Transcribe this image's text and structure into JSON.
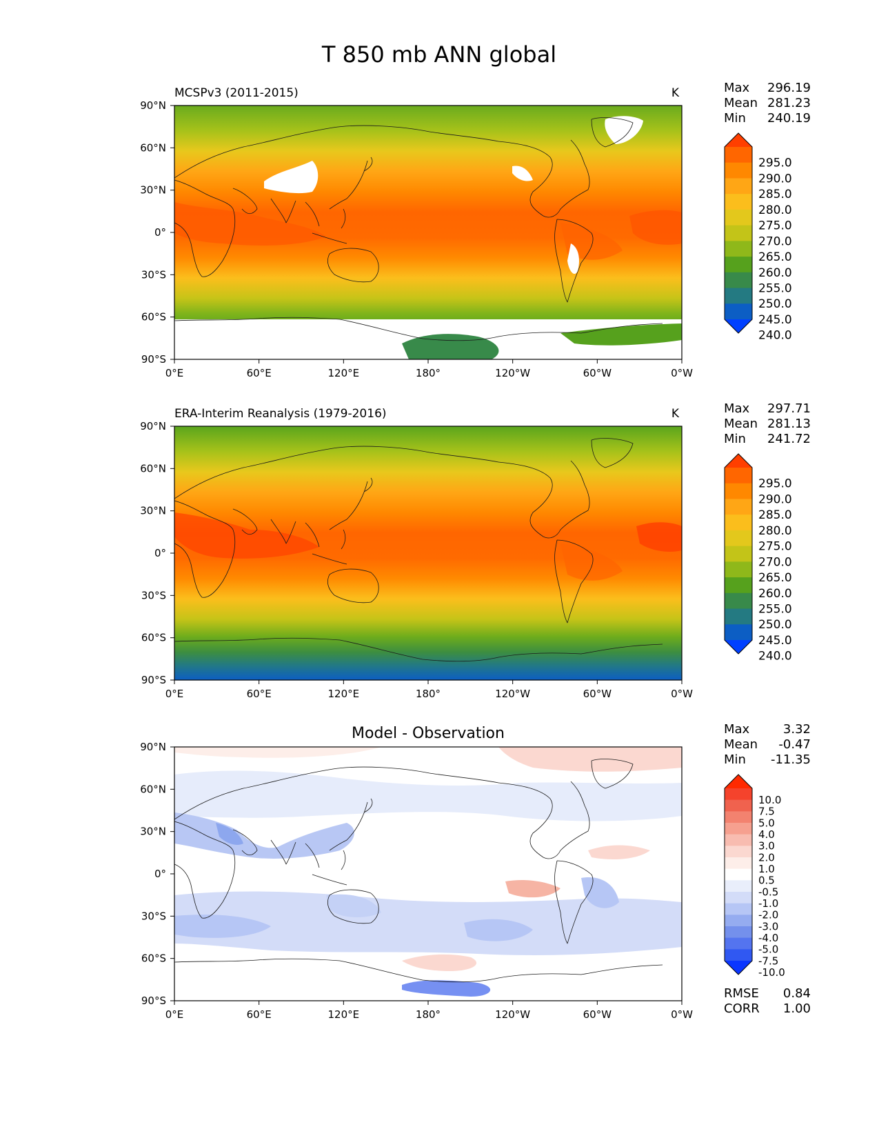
{
  "figure": {
    "title": "T 850 mb ANN global"
  },
  "axes": {
    "x_ticks": [
      "0°E",
      "60°E",
      "120°E",
      "180°",
      "120°W",
      "60°W",
      "0°W"
    ],
    "y_ticks": [
      "90°N",
      "60°N",
      "30°N",
      "0°",
      "30°S",
      "60°S",
      "90°S"
    ]
  },
  "chart_data": [
    {
      "type": "heatmap",
      "name": "model",
      "title": "MCSPv3 (2011-2015)",
      "units": "K",
      "xlim": [
        0,
        360
      ],
      "ylim": [
        -90,
        90
      ],
      "stats": [
        {
          "label": "Max",
          "value": "296.19"
        },
        {
          "label": "Mean",
          "value": "281.23"
        },
        {
          "label": "Min",
          "value": "240.19"
        }
      ],
      "colorbar": {
        "levels": [
          "295.0",
          "290.0",
          "285.0",
          "280.0",
          "275.0",
          "270.0",
          "265.0",
          "260.0",
          "255.0",
          "250.0",
          "245.0",
          "240.0"
        ],
        "colors": [
          "#ff3f00",
          "#ff6600",
          "#ff8800",
          "#ffa615",
          "#fbbe1c",
          "#e3c81c",
          "#c3c418",
          "#8fb81a",
          "#56a11d",
          "#388a4a",
          "#247a82",
          "#0c5ec4",
          "#0040ff"
        ]
      }
    },
    {
      "type": "heatmap",
      "name": "reference",
      "title": "ERA-Interim Reanalysis (1979-2016)",
      "units": "K",
      "xlim": [
        0,
        360
      ],
      "ylim": [
        -90,
        90
      ],
      "stats": [
        {
          "label": "Max",
          "value": "297.71"
        },
        {
          "label": "Mean",
          "value": "281.13"
        },
        {
          "label": "Min",
          "value": "241.72"
        }
      ],
      "colorbar": {
        "levels": [
          "295.0",
          "290.0",
          "285.0",
          "280.0",
          "275.0",
          "270.0",
          "265.0",
          "260.0",
          "255.0",
          "250.0",
          "245.0",
          "240.0"
        ],
        "colors": [
          "#ff3f00",
          "#ff6600",
          "#ff8800",
          "#ffa615",
          "#fbbe1c",
          "#e3c81c",
          "#c3c418",
          "#8fb81a",
          "#56a11d",
          "#388a4a",
          "#247a82",
          "#0c5ec4",
          "#0040ff"
        ]
      }
    },
    {
      "type": "heatmap",
      "name": "difference",
      "title": "Model - Observation",
      "units": "",
      "xlim": [
        0,
        360
      ],
      "ylim": [
        -90,
        90
      ],
      "stats": [
        {
          "label": "Max",
          "value": "3.32"
        },
        {
          "label": "Mean",
          "value": "-0.47"
        },
        {
          "label": "Min",
          "value": "-11.35"
        }
      ],
      "metrics": [
        {
          "label": "RMSE",
          "value": "0.84"
        },
        {
          "label": "CORR",
          "value": "1.00"
        }
      ],
      "colorbar": {
        "levels": [
          "10.0",
          "7.5",
          "5.0",
          "4.0",
          "3.0",
          "2.0",
          "1.0",
          "0.5",
          "-0.5",
          "-1.0",
          "-2.0",
          "-3.0",
          "-4.0",
          "-5.0",
          "-7.5",
          "-10.0"
        ],
        "colors": [
          "#ff2a00",
          "#f5432c",
          "#f0624e",
          "#f3826f",
          "#f6a08f",
          "#f8bcb0",
          "#fbd8d0",
          "#fdeee9",
          "#ffffff",
          "#e9eefb",
          "#d3dcf8",
          "#b6c6f5",
          "#95acf0",
          "#7490ec",
          "#5474ef",
          "#3058f2",
          "#0a36ff"
        ]
      }
    }
  ]
}
